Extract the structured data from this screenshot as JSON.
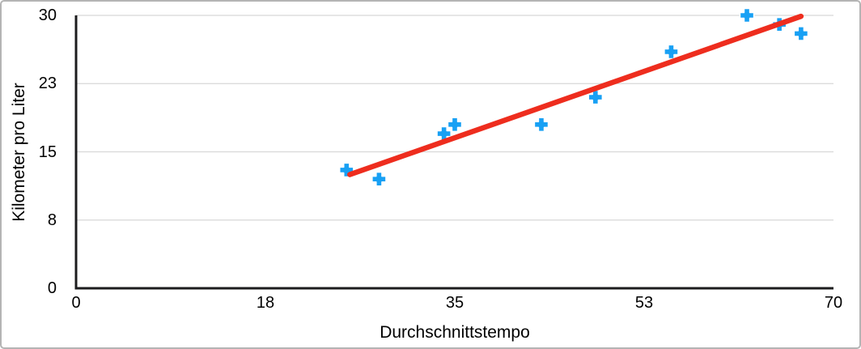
{
  "chart_data": {
    "type": "scatter",
    "xlabel": "Durchschnittstempo",
    "ylabel": "Kilometer pro Liter",
    "xlim": [
      0,
      70
    ],
    "ylim": [
      0,
      30
    ],
    "x_tick_labels": [
      "0",
      "18",
      "35",
      "53",
      "70"
    ],
    "y_tick_labels": [
      "0",
      "8",
      "15",
      "23",
      "30"
    ],
    "grid": "horizontal-only",
    "legend": "none",
    "series": [
      {
        "name": "Kilometer pro Liter",
        "marker": "plus",
        "color": "#18a0f4",
        "points": [
          {
            "x": 25,
            "y": 13
          },
          {
            "x": 28,
            "y": 12
          },
          {
            "x": 34,
            "y": 17
          },
          {
            "x": 35,
            "y": 18
          },
          {
            "x": 43,
            "y": 18
          },
          {
            "x": 48,
            "y": 21
          },
          {
            "x": 55,
            "y": 26
          },
          {
            "x": 62,
            "y": 30
          },
          {
            "x": 65,
            "y": 29
          },
          {
            "x": 67,
            "y": 28
          }
        ]
      }
    ],
    "trendline": {
      "color": "#ee2d1e",
      "x1": 25.3,
      "y1": 12.5,
      "x2": 67.0,
      "y2": 29.9
    },
    "colors": {
      "marker": "#18a0f4",
      "marker_outline": "#ffffff",
      "trend": "#ee2d1e",
      "grid": "#d8d8d8",
      "axis": "#1c1c1e",
      "text": "#000000",
      "frame_border": "#b4b4b4",
      "background": "#ffffff"
    }
  }
}
